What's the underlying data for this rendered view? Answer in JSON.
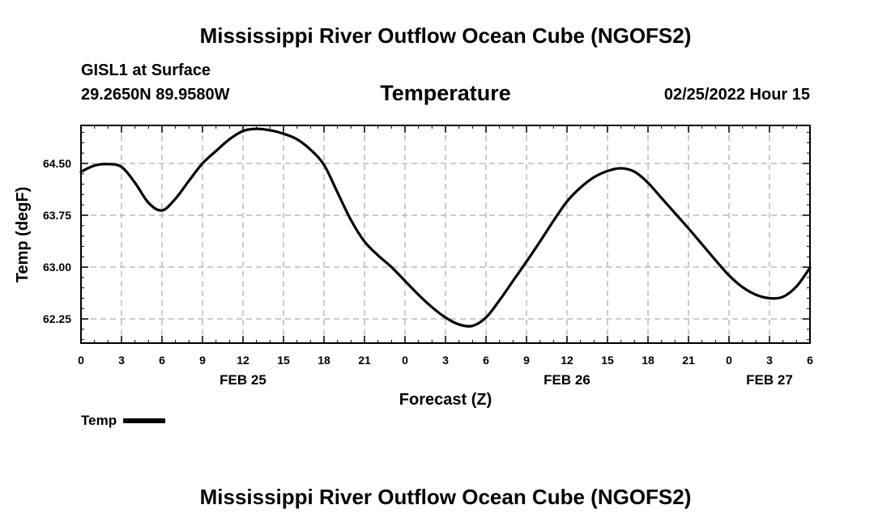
{
  "header": {
    "title": "Mississippi River Outflow Ocean Cube (NGOFS2)",
    "station_name": "GISL1 at Surface",
    "station_coords": "29.2650N  89.9580W",
    "chart_title": "Temperature",
    "date_label": "02/25/2022 Hour 15"
  },
  "footer": {
    "title": "Mississippi River Outflow Ocean Cube (NGOFS2)"
  },
  "legend": {
    "label": "Temp"
  },
  "colors": {
    "line": "#000000",
    "grid": "#b5b5b5",
    "frame": "#000000",
    "background": "#ffffff"
  },
  "chart_data": {
    "type": "line",
    "title": "Temperature",
    "xlabel": "Forecast (Z)",
    "ylabel": "Temp (degF)",
    "xlim": [
      0,
      54
    ],
    "ylim": [
      61.9,
      65.05
    ],
    "yticks": [
      62.25,
      63.0,
      63.75,
      64.5
    ],
    "ytick_labels": [
      "62.25",
      "63.00",
      "63.75",
      "64.50"
    ],
    "xticks": [
      0,
      3,
      6,
      9,
      12,
      15,
      18,
      21,
      24,
      27,
      30,
      33,
      36,
      39,
      42,
      45,
      48,
      51,
      54
    ],
    "xtick_labels": [
      "0",
      "3",
      "6",
      "9",
      "12",
      "15",
      "18",
      "21",
      "0",
      "3",
      "6",
      "9",
      "12",
      "15",
      "18",
      "21",
      "0",
      "3",
      "6"
    ],
    "date_labels": [
      {
        "x": 12,
        "label": "FEB 25"
      },
      {
        "x": 36,
        "label": "FEB 26"
      },
      {
        "x": 51,
        "label": "FEB 27"
      }
    ],
    "grid": true,
    "legend_position": "bottom-left",
    "series": [
      {
        "name": "Temp",
        "x": [
          0,
          1,
          2,
          3,
          4,
          5,
          6,
          7,
          8,
          9,
          10,
          11,
          12,
          13,
          14,
          15,
          16,
          17,
          18,
          19,
          20,
          21,
          22,
          23,
          24,
          25,
          26,
          27,
          28,
          29,
          30,
          31,
          32,
          33,
          34,
          35,
          36,
          37,
          38,
          39,
          40,
          41,
          42,
          43,
          44,
          45,
          46,
          47,
          48,
          49,
          50,
          51,
          52,
          53,
          54
        ],
        "y": [
          64.38,
          64.47,
          64.49,
          64.45,
          64.22,
          63.93,
          63.82,
          63.99,
          64.25,
          64.5,
          64.68,
          64.85,
          64.97,
          65.0,
          64.98,
          64.93,
          64.85,
          64.7,
          64.48,
          64.08,
          63.68,
          63.37,
          63.17,
          63.0,
          62.8,
          62.6,
          62.42,
          62.27,
          62.17,
          62.15,
          62.27,
          62.52,
          62.8,
          63.08,
          63.37,
          63.67,
          63.95,
          64.15,
          64.3,
          64.39,
          64.43,
          64.38,
          64.22,
          64.0,
          63.78,
          63.56,
          63.33,
          63.1,
          62.88,
          62.71,
          62.6,
          62.55,
          62.57,
          62.72,
          62.99
        ]
      }
    ]
  }
}
